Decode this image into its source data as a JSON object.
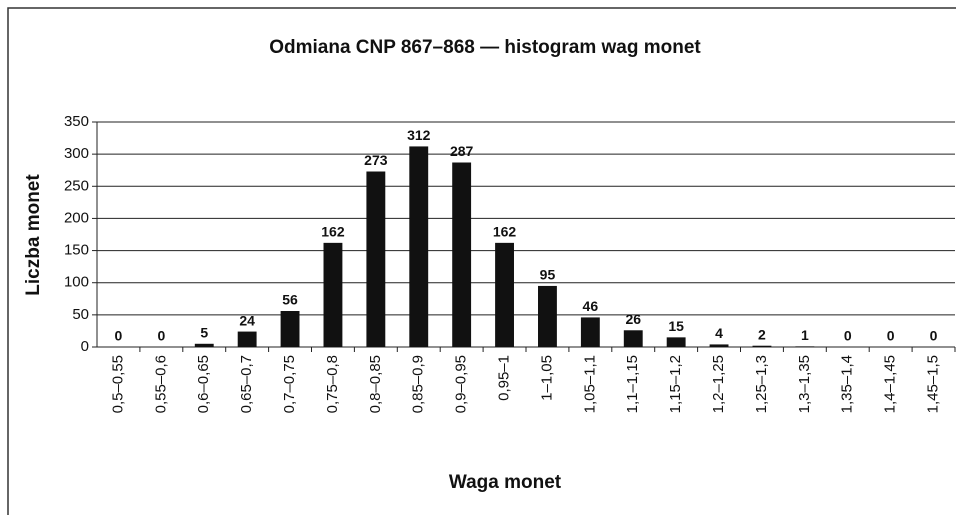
{
  "chart_data": {
    "type": "bar",
    "title": "Odmiana CNP 867–868 — histogram wag monet",
    "x_label": "Waga monet",
    "y_label": "Liczba monet",
    "categories": [
      "0,5–0,55",
      "0,55–0,6",
      "0,6–0,65",
      "0,65–0,7",
      "0,7–0,75",
      "0,75–0,8",
      "0,8–0,85",
      "0,85–0,9",
      "0,9–0,95",
      "0,95–1",
      "1–1,05",
      "1,05–1,1",
      "1,1–1,15",
      "1,15–1,2",
      "1,2–1,25",
      "1,25–1,3",
      "1,3–1,35",
      "1,35–1,4",
      "1,4–1,45",
      "1,45–1,5"
    ],
    "values": [
      0,
      0,
      5,
      24,
      56,
      162,
      273,
      312,
      287,
      162,
      95,
      46,
      26,
      15,
      4,
      2,
      1,
      0,
      0,
      0
    ],
    "color": "#111111",
    "ylim": [
      0,
      350
    ],
    "yticks": [
      0,
      50,
      100,
      150,
      200,
      250,
      300,
      350
    ],
    "grid": true
  }
}
